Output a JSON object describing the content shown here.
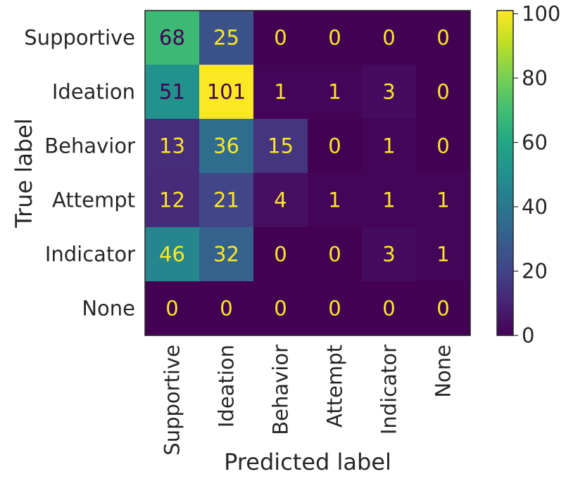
{
  "chart_data": {
    "type": "heatmap",
    "title": "",
    "xlabel": "Predicted label",
    "ylabel": "True label",
    "x_categories": [
      "Supportive",
      "Ideation",
      "Behavior",
      "Attempt",
      "Indicator",
      "None"
    ],
    "y_categories": [
      "Supportive",
      "Ideation",
      "Behavior",
      "Attempt",
      "Indicator",
      "None"
    ],
    "values": [
      [
        68,
        25,
        0,
        0,
        0,
        0
      ],
      [
        51,
        101,
        1,
        1,
        3,
        0
      ],
      [
        13,
        36,
        15,
        0,
        1,
        0
      ],
      [
        12,
        21,
        4,
        1,
        1,
        1
      ],
      [
        46,
        32,
        0,
        0,
        3,
        1
      ],
      [
        0,
        0,
        0,
        0,
        0,
        0
      ]
    ],
    "colormap": "viridis",
    "color_range": [
      0,
      101
    ],
    "colorbar_ticks": [
      0,
      20,
      40,
      60,
      80,
      100
    ],
    "grid": false
  }
}
